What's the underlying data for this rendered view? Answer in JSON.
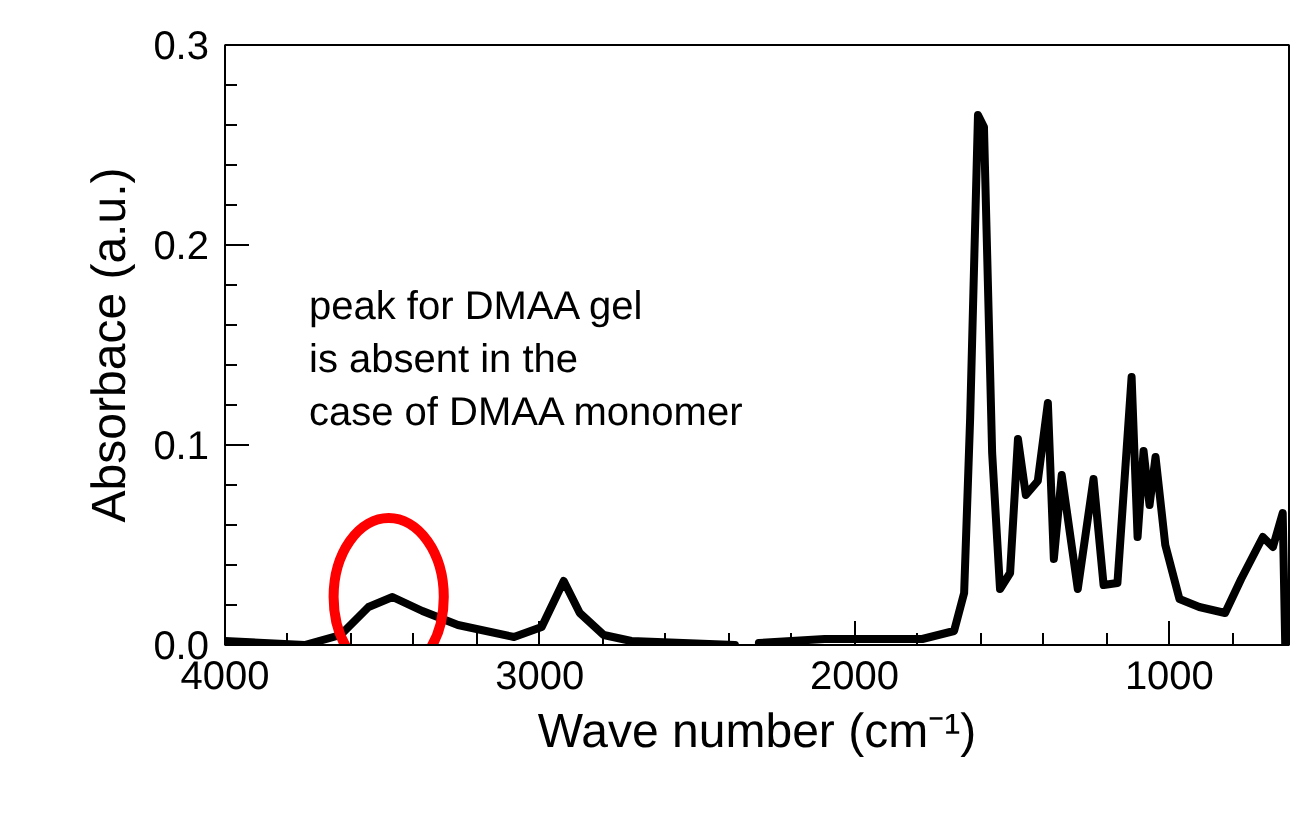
{
  "chart_data": {
    "type": "line",
    "xlabel": "Wave number (cm⁻¹)",
    "ylabel": "Absorbace (a.u.)",
    "annotations": [
      "peak for DMAA gel\nis absent in the\ncase of DMAA monomer"
    ],
    "series": [
      {
        "color": "#000000",
        "x": [
          4000,
          3747,
          3633,
          3544,
          3468,
          3373,
          3260,
          3082,
          2994,
          2924,
          2873,
          2797,
          2709,
          2380,
          2342,
          2304,
          2095,
          1785,
          1684,
          1652,
          1633,
          1608,
          1589,
          1563,
          1538,
          1506,
          1481,
          1456,
          1418,
          1386,
          1367,
          1342,
          1291,
          1241,
          1209,
          1165,
          1120,
          1101,
          1082,
          1063,
          1044,
          1013,
          968,
          905,
          823,
          772,
          703,
          671,
          640,
          632
        ],
        "values": [
          0.002,
          0.0,
          0.005,
          0.019,
          0.024,
          0.017,
          0.01,
          0.004,
          0.009,
          0.032,
          0.016,
          0.005,
          0.002,
          0.0,
          null,
          0.001,
          0.003,
          0.003,
          0.007,
          0.026,
          0.113,
          0.265,
          0.259,
          0.096,
          0.028,
          0.036,
          0.103,
          0.075,
          0.082,
          0.121,
          0.043,
          0.085,
          0.028,
          0.083,
          0.03,
          0.031,
          0.134,
          0.054,
          0.097,
          0.07,
          0.094,
          0.05,
          0.023,
          0.019,
          0.016,
          0.033,
          0.054,
          0.049,
          0.066,
          0.0
        ]
      }
    ],
    "xlim": [
      4000,
      620
    ],
    "xticks": [
      4000,
      {
        "value": 3800,
        "label": null
      },
      {
        "value": 3600,
        "label": null
      },
      {
        "value": 3400,
        "label": null
      },
      {
        "value": 3200,
        "label": null
      },
      3000,
      {
        "value": 2800,
        "label": null
      },
      {
        "value": 2600,
        "label": null
      },
      {
        "value": 2400,
        "label": null
      },
      {
        "value": 2200,
        "label": null
      },
      2000,
      {
        "value": 1800,
        "label": null
      },
      {
        "value": 1600,
        "label": null
      },
      {
        "value": 1400,
        "label": null
      },
      {
        "value": 1200,
        "label": null
      },
      1000,
      {
        "value": 800,
        "label": null
      }
    ],
    "ylim": [
      0,
      0.3
    ],
    "yticks": [
      {
        "value": 0,
        "label": "0.0"
      },
      {
        "value": 0.02,
        "label": null
      },
      {
        "value": 0.04,
        "label": null
      },
      {
        "value": 0.06,
        "label": null
      },
      {
        "value": 0.08,
        "label": null
      },
      0.1,
      {
        "value": 0.12,
        "label": null
      },
      {
        "value": 0.14,
        "label": null
      },
      {
        "value": 0.16,
        "label": null
      },
      {
        "value": 0.18,
        "label": null
      },
      0.2,
      {
        "value": 0.22,
        "label": null
      },
      {
        "value": 0.24,
        "label": null
      },
      {
        "value": 0.26,
        "label": null
      },
      {
        "value": 0.28,
        "label": null
      },
      0.3
    ],
    "grid": false
  }
}
